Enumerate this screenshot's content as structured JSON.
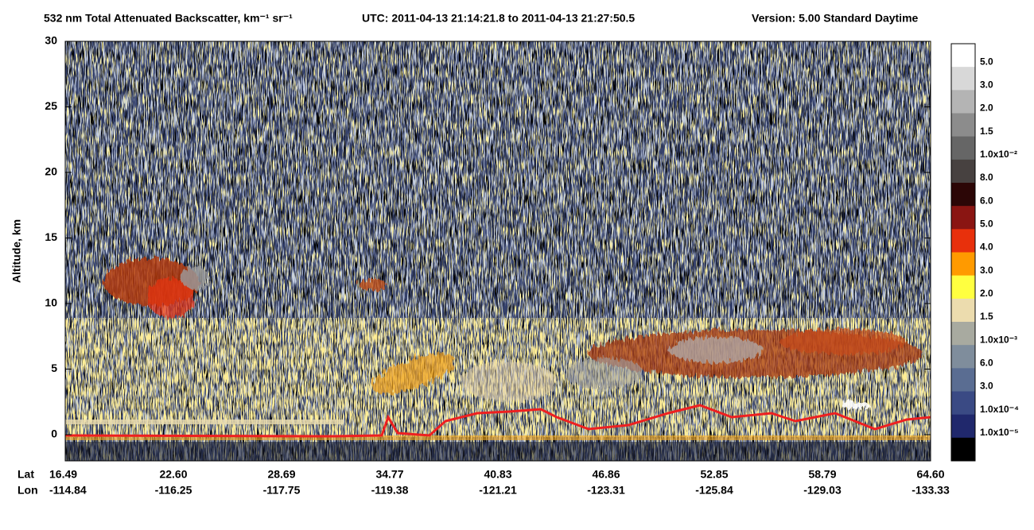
{
  "chart_data": {
    "type": "heatmap",
    "title": "532 nm Total Attenuated Backscatter, km⁻¹ sr⁻¹",
    "utc": "UTC:  2011-04-13 21:14:21.8  to  2011-04-13 21:27:50.5",
    "version": "Version: 5.00  Standard  Daytime",
    "ylabel": "Altitude, km",
    "ylim": [
      -2,
      30
    ],
    "yticks": [
      0,
      5,
      10,
      15,
      20,
      25,
      30
    ],
    "lat_label": "Lat",
    "lon_label": "Lon",
    "lat_ticks": [
      16.49,
      {
        "value": 22.6,
        "label": "22.60"
      },
      28.69,
      34.77,
      40.83,
      46.86,
      52.85,
      58.79,
      {
        "value": 64.6,
        "label": "64.60"
      }
    ],
    "lon_ticks": [
      -114.84,
      -116.25,
      -117.75,
      -119.38,
      -121.21,
      -123.31,
      -125.84,
      -129.03,
      -133.33
    ],
    "colorbar": {
      "colors": [
        "#ffffff",
        "#d8d8d8",
        "#b4b4b4",
        "#8c8c8c",
        "#666666",
        "#474140",
        "#2c0606",
        "#8a1512",
        "#e8300c",
        "#ff9a00",
        "#ffff40",
        "#ecdcae",
        "#a8aaa0",
        "#7f8d9c",
        "#5a6d92",
        "#3a4a84",
        "#20286c",
        "#000000"
      ],
      "labels": [
        "5.0",
        "3.0",
        "2.0",
        "1.5",
        "1.0x10⁻²",
        "8.0",
        "6.0",
        "5.0",
        "4.0",
        "3.0",
        "2.0",
        "1.5",
        "1.0x10⁻³",
        "6.0",
        "3.0",
        "1.0x10⁻⁴",
        "1.0x10⁻⁵"
      ]
    }
  }
}
